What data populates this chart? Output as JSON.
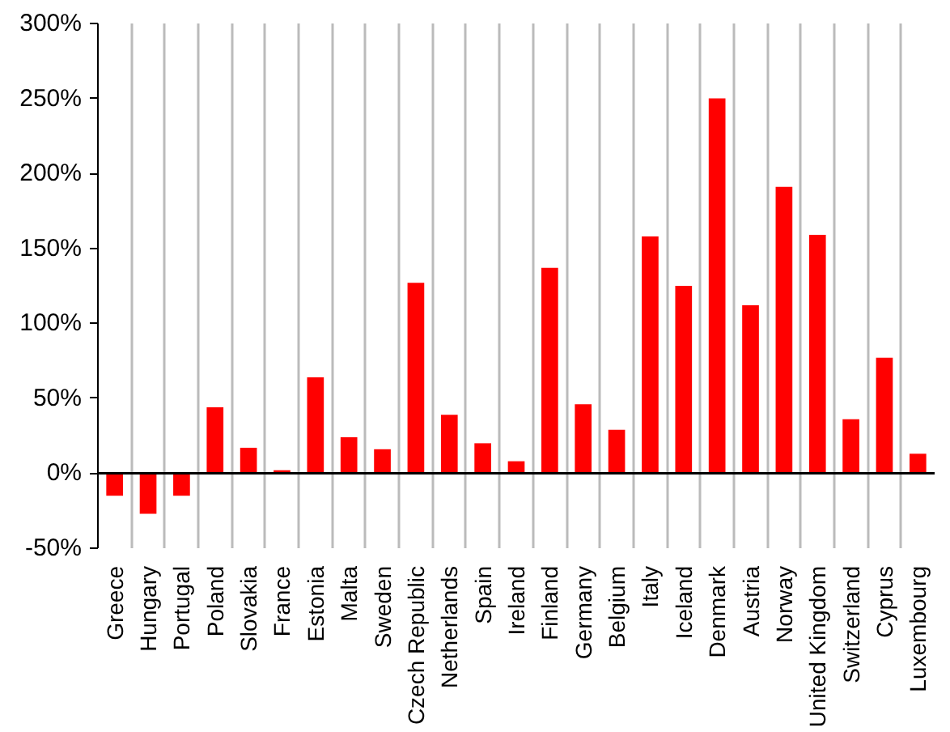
{
  "chart_data": {
    "type": "bar",
    "categories": [
      "Greece",
      "Hungary",
      "Portugal",
      "Poland",
      "Slovakia",
      "France",
      "Estonia",
      "Malta",
      "Sweden",
      "Czech Republic",
      "Netherlands",
      "Spain",
      "Ireland",
      "Finland",
      "Germany",
      "Belgium",
      "Italy",
      "Iceland",
      "Denmark",
      "Austria",
      "Norway",
      "United Kingdom",
      "Switzerland",
      "Cyprus",
      "Luxembourg"
    ],
    "values": [
      -15,
      -27,
      -15,
      44,
      17,
      2,
      64,
      24,
      16,
      127,
      39,
      20,
      8,
      137,
      46,
      29,
      158,
      125,
      250,
      112,
      191,
      159,
      36,
      77,
      13
    ],
    "color": "#ff0000",
    "ylim": [
      -50,
      300
    ],
    "yticks": [
      {
        "value": -50,
        "label": "-50%"
      },
      {
        "value": 0,
        "label": "0%"
      },
      {
        "value": 50,
        "label": "50%"
      },
      {
        "value": 100,
        "label": "100%"
      },
      {
        "value": 150,
        "label": "150%"
      },
      {
        "value": 200,
        "label": "200%"
      },
      {
        "value": 250,
        "label": "250%"
      },
      {
        "value": 300,
        "label": "300%"
      }
    ],
    "grid": "x",
    "ref_lines": [
      {
        "axis": "y",
        "value": 0,
        "color": "#000000"
      }
    ]
  }
}
